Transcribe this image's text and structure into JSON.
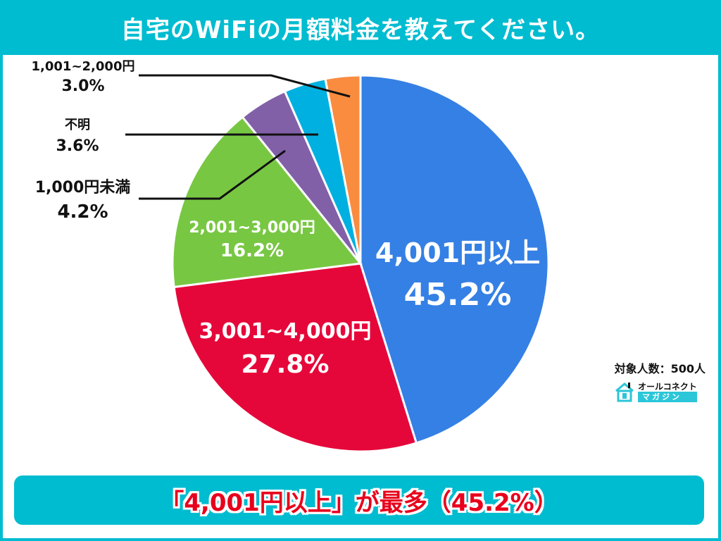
{
  "header": {
    "title": "自宅のWiFiの月額料金を教えてください。"
  },
  "chart_data": {
    "type": "pie",
    "title": "自宅のWiFiの月額料金を教えてください。",
    "categories": [
      "4,001円以上",
      "3,001~4,000円",
      "2,001~3,000円",
      "1,000円未満",
      "不明",
      "1,001~2,000円"
    ],
    "values": [
      45.2,
      27.8,
      16.2,
      4.2,
      3.6,
      3.0
    ],
    "colors": [
      "#3580e4",
      "#e6073a",
      "#78c743",
      "#8260a8",
      "#00b0e0",
      "#fa8c40"
    ],
    "unit": "%",
    "start_angle": "12 o'clock, clockwise",
    "sample_size": "500人"
  },
  "labels": {
    "s0": {
      "name": "4,001円以上",
      "pct": "45.2%"
    },
    "s1": {
      "name": "3,001~4,000円",
      "pct": "27.8%"
    },
    "s2": {
      "name": "2,001~3,000円",
      "pct": "16.2%"
    },
    "s3": {
      "name": "1,000円未満",
      "pct": "4.2%"
    },
    "s4": {
      "name": "不明",
      "pct": "3.6%"
    },
    "s5": {
      "name": "1,001~2,000円",
      "pct": "3.0%"
    }
  },
  "footer": {
    "sample": "対象人数：500人",
    "logo_top": "オールコネクト",
    "logo_bottom": "マガジン",
    "summary": "「4,001円以上」が最多（45.2%）"
  }
}
